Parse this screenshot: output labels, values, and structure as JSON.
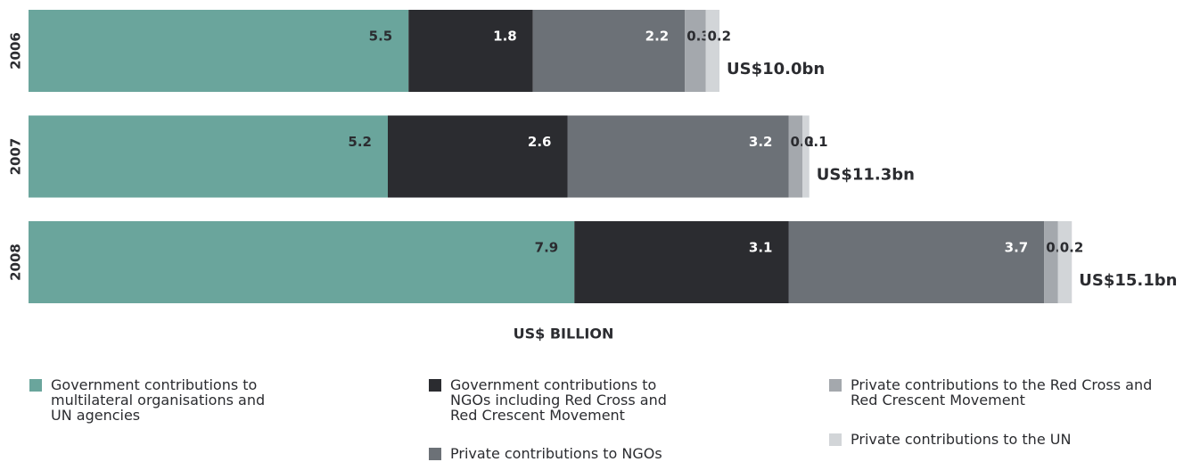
{
  "chart_data": {
    "type": "stacked-bar-horizontal",
    "categories": [
      "2006",
      "2007",
      "2008"
    ],
    "series": [
      {
        "name": "Government contributions to multilateral organisations and UN agencies",
        "color": "#6aa59c",
        "values": [
          5.5,
          5.2,
          7.9
        ]
      },
      {
        "name": "Government contributions to NGOs including Red Cross and Red Crescent Movement",
        "color": "#2b2c30",
        "values": [
          1.8,
          2.6,
          3.1
        ]
      },
      {
        "name": "Private contributions to NGOs",
        "color": "#6c7177",
        "values": [
          2.2,
          3.2,
          3.7
        ]
      },
      {
        "name": "Private contributions to the Red Cross and Red Crescent Movement",
        "color": "#a4a8ad",
        "values": [
          0.3,
          0.2,
          0.2
        ]
      },
      {
        "name": "Private contributions to the UN",
        "color": "#d2d5d8",
        "values": [
          0.2,
          0.1,
          0.2
        ]
      }
    ],
    "annotations": [
      "US$10.0bn",
      "US$11.3bn",
      "US$15.1bn"
    ],
    "xlabel": "US$ BILLION",
    "xlim": [
      0,
      16
    ]
  }
}
